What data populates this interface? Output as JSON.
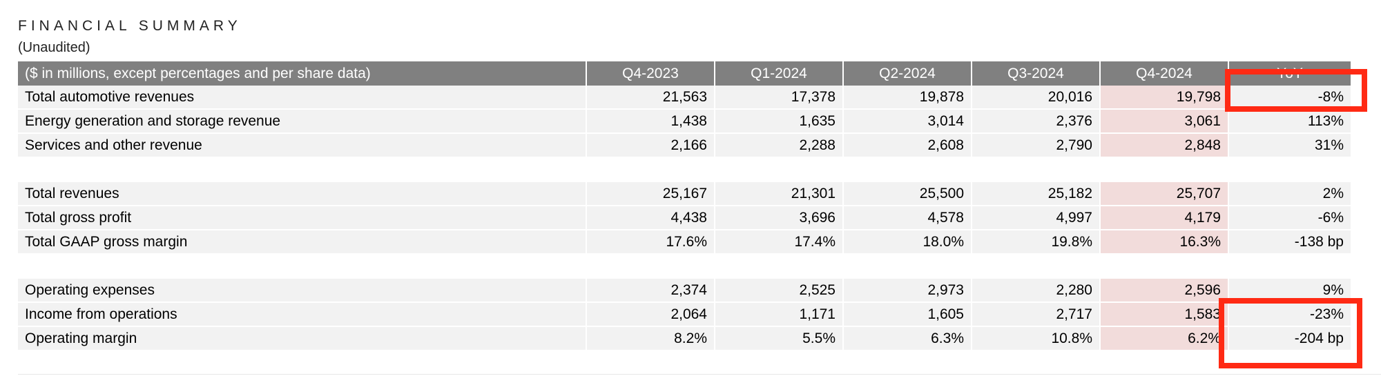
{
  "title": "FINANCIAL SUMMARY",
  "subtitle": "(Unaudited)",
  "header": {
    "label": "($ in millions, except percentages and per share data)",
    "quarters": [
      "Q4-2023",
      "Q1-2024",
      "Q2-2024",
      "Q3-2024",
      "Q4-2024"
    ],
    "yoy": "YoY"
  },
  "groups": [
    {
      "rows": [
        {
          "label": "Total automotive revenues",
          "values": [
            "21,563",
            "17,378",
            "19,878",
            "20,016",
            "19,798"
          ],
          "yoy": "-8%"
        },
        {
          "label": "Energy generation and storage revenue",
          "values": [
            "1,438",
            "1,635",
            "3,014",
            "2,376",
            "3,061"
          ],
          "yoy": "113%"
        },
        {
          "label": "Services and other revenue",
          "values": [
            "2,166",
            "2,288",
            "2,608",
            "2,790",
            "2,848"
          ],
          "yoy": "31%"
        }
      ]
    },
    {
      "rows": [
        {
          "label": "Total revenues",
          "values": [
            "25,167",
            "21,301",
            "25,500",
            "25,182",
            "25,707"
          ],
          "yoy": "2%"
        },
        {
          "label": "Total gross profit",
          "values": [
            "4,438",
            "3,696",
            "4,578",
            "4,997",
            "4,179"
          ],
          "yoy": "-6%"
        },
        {
          "label": "Total GAAP gross margin",
          "values": [
            "17.6%",
            "17.4%",
            "18.0%",
            "19.8%",
            "16.3%"
          ],
          "yoy": "-138 bp"
        }
      ]
    },
    {
      "rows": [
        {
          "label": "Operating expenses",
          "values": [
            "2,374",
            "2,525",
            "2,973",
            "2,280",
            "2,596"
          ],
          "yoy": "9%"
        },
        {
          "label": "Income from operations",
          "values": [
            "2,064",
            "1,171",
            "1,605",
            "2,717",
            "1,583"
          ],
          "yoy": "-23%"
        },
        {
          "label": "Operating margin",
          "values": [
            "8.2%",
            "5.5%",
            "6.3%",
            "10.8%",
            "6.2%"
          ],
          "yoy": "-204 bp"
        }
      ]
    }
  ],
  "highlight_color": "#f2dcdb",
  "annotation_color": "#ff2a14"
}
